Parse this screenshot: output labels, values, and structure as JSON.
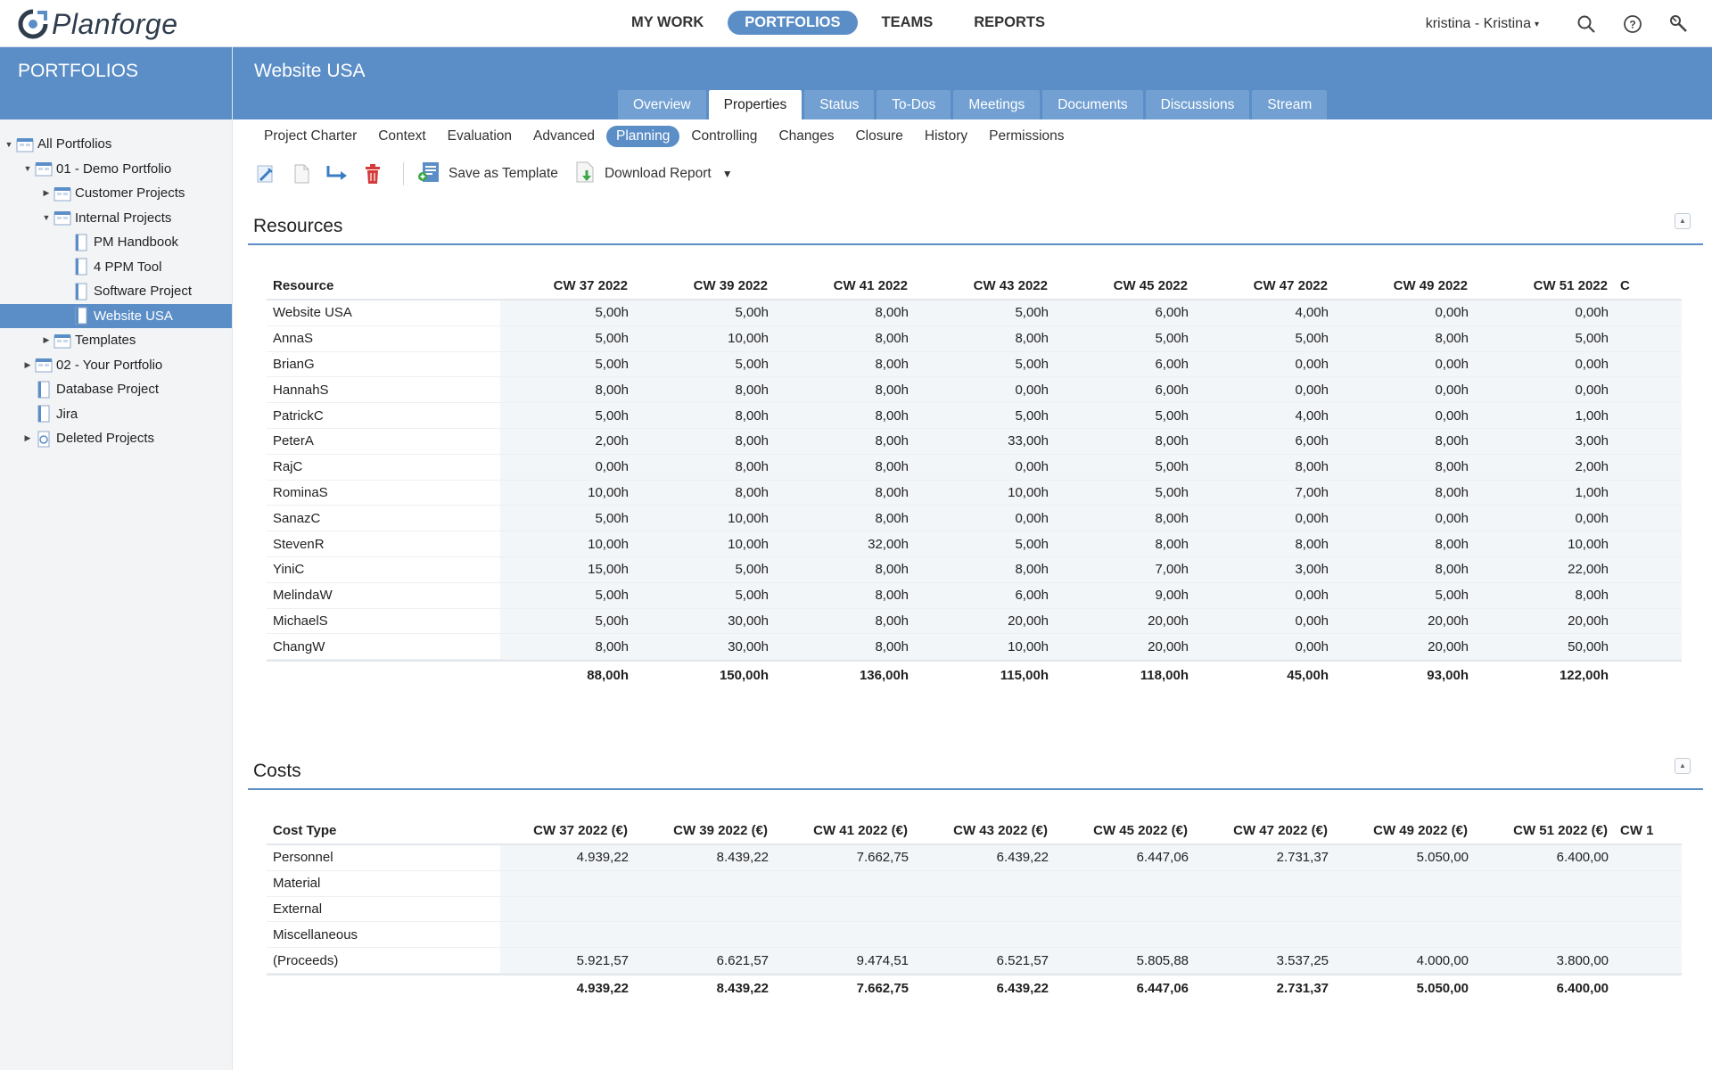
{
  "app": {
    "logo_text": "Planforge",
    "nav": [
      {
        "label": "MY WORK",
        "active": false
      },
      {
        "label": "PORTFOLIOS",
        "active": true
      },
      {
        "label": "TEAMS",
        "active": false
      },
      {
        "label": "REPORTS",
        "active": false
      }
    ],
    "user": "kristina - Kristina",
    "icons": [
      "search-icon",
      "help-icon",
      "tools-icon"
    ]
  },
  "sidebar": {
    "title": "PORTFOLIOS",
    "tree": [
      {
        "label": "All Portfolios",
        "level": 0,
        "twisty": "open",
        "icon": "portfolio-icon"
      },
      {
        "label": "01 - Demo Portfolio",
        "level": 1,
        "twisty": "open",
        "icon": "portfolio-icon"
      },
      {
        "label": "Customer Projects",
        "level": 2,
        "twisty": "closed",
        "icon": "portfolio-icon"
      },
      {
        "label": "Internal Projects",
        "level": 2,
        "twisty": "open",
        "icon": "portfolio-icon"
      },
      {
        "label": "PM Handbook",
        "level": 3,
        "twisty": "none",
        "icon": "project-icon"
      },
      {
        "label": "4 PPM Tool",
        "level": 3,
        "twisty": "none",
        "icon": "project-icon"
      },
      {
        "label": "Software Project",
        "level": 3,
        "twisty": "none",
        "icon": "project-icon"
      },
      {
        "label": "Website USA",
        "level": 3,
        "twisty": "none",
        "icon": "project-icon",
        "selected": true
      },
      {
        "label": "Templates",
        "level": 2,
        "twisty": "closed",
        "icon": "portfolio-icon"
      },
      {
        "label": "02 - Your Portfolio",
        "level": 1,
        "twisty": "closed",
        "icon": "portfolio-icon"
      },
      {
        "label": "Database Project",
        "level": 1,
        "twisty": "none",
        "icon": "project-icon"
      },
      {
        "label": "Jira",
        "level": 1,
        "twisty": "none",
        "icon": "project-icon"
      },
      {
        "label": "Deleted Projects",
        "level": 1,
        "twisty": "closed",
        "icon": "trash-folder-icon"
      }
    ]
  },
  "project": {
    "title": "Website USA",
    "tabs": [
      {
        "label": "Overview",
        "active": false
      },
      {
        "label": "Properties",
        "active": true
      },
      {
        "label": "Status",
        "active": false
      },
      {
        "label": "To-Dos",
        "active": false
      },
      {
        "label": "Meetings",
        "active": false
      },
      {
        "label": "Documents",
        "active": false
      },
      {
        "label": "Discussions",
        "active": false
      },
      {
        "label": "Stream",
        "active": false
      }
    ],
    "subtabs": [
      {
        "label": "Project Charter",
        "active": false
      },
      {
        "label": "Context",
        "active": false
      },
      {
        "label": "Evaluation",
        "active": false
      },
      {
        "label": "Advanced",
        "active": false
      },
      {
        "label": "Planning",
        "active": true
      },
      {
        "label": "Controlling",
        "active": false
      },
      {
        "label": "Changes",
        "active": false
      },
      {
        "label": "Closure",
        "active": false
      },
      {
        "label": "History",
        "active": false
      },
      {
        "label": "Permissions",
        "active": false
      }
    ]
  },
  "toolbar": {
    "save_template_label": "Save as Template",
    "download_report_label": "Download Report"
  },
  "resources": {
    "title": "Resources",
    "header_first": "Resource",
    "columns": [
      "CW 37 2022",
      "CW 39 2022",
      "CW 41 2022",
      "CW 43 2022",
      "CW 45 2022",
      "CW 47 2022",
      "CW 49 2022",
      "CW 51 2022",
      "C"
    ],
    "rows": [
      {
        "name": "Website USA",
        "values": [
          "5,00h",
          "5,00h",
          "8,00h",
          "5,00h",
          "6,00h",
          "4,00h",
          "0,00h",
          "0,00h"
        ]
      },
      {
        "name": "AnnaS",
        "values": [
          "5,00h",
          "10,00h",
          "8,00h",
          "8,00h",
          "5,00h",
          "5,00h",
          "8,00h",
          "5,00h"
        ]
      },
      {
        "name": "BrianG",
        "values": [
          "5,00h",
          "5,00h",
          "8,00h",
          "5,00h",
          "6,00h",
          "0,00h",
          "0,00h",
          "0,00h"
        ]
      },
      {
        "name": "HannahS",
        "values": [
          "8,00h",
          "8,00h",
          "8,00h",
          "0,00h",
          "6,00h",
          "0,00h",
          "0,00h",
          "0,00h"
        ]
      },
      {
        "name": "PatrickC",
        "values": [
          "5,00h",
          "8,00h",
          "8,00h",
          "5,00h",
          "5,00h",
          "4,00h",
          "0,00h",
          "1,00h"
        ]
      },
      {
        "name": "PeterA",
        "values": [
          "2,00h",
          "8,00h",
          "8,00h",
          "33,00h",
          "8,00h",
          "6,00h",
          "8,00h",
          "3,00h"
        ]
      },
      {
        "name": "RajC",
        "values": [
          "0,00h",
          "8,00h",
          "8,00h",
          "0,00h",
          "5,00h",
          "8,00h",
          "8,00h",
          "2,00h"
        ]
      },
      {
        "name": "RominaS",
        "values": [
          "10,00h",
          "8,00h",
          "8,00h",
          "10,00h",
          "5,00h",
          "7,00h",
          "8,00h",
          "1,00h"
        ]
      },
      {
        "name": "SanazC",
        "values": [
          "5,00h",
          "10,00h",
          "8,00h",
          "0,00h",
          "8,00h",
          "0,00h",
          "0,00h",
          "0,00h"
        ]
      },
      {
        "name": "StevenR",
        "values": [
          "10,00h",
          "10,00h",
          "32,00h",
          "5,00h",
          "8,00h",
          "8,00h",
          "8,00h",
          "10,00h"
        ]
      },
      {
        "name": "YiniC",
        "values": [
          "15,00h",
          "5,00h",
          "8,00h",
          "8,00h",
          "7,00h",
          "3,00h",
          "8,00h",
          "22,00h"
        ]
      },
      {
        "name": "MelindaW",
        "values": [
          "5,00h",
          "5,00h",
          "8,00h",
          "6,00h",
          "9,00h",
          "0,00h",
          "5,00h",
          "8,00h"
        ]
      },
      {
        "name": "MichaelS",
        "values": [
          "5,00h",
          "30,00h",
          "8,00h",
          "20,00h",
          "20,00h",
          "0,00h",
          "20,00h",
          "20,00h"
        ]
      },
      {
        "name": "ChangW",
        "values": [
          "8,00h",
          "30,00h",
          "8,00h",
          "10,00h",
          "20,00h",
          "0,00h",
          "20,00h",
          "50,00h"
        ]
      }
    ],
    "totals": [
      "88,00h",
      "150,00h",
      "136,00h",
      "115,00h",
      "118,00h",
      "45,00h",
      "93,00h",
      "122,00h"
    ]
  },
  "costs": {
    "title": "Costs",
    "header_first": "Cost Type",
    "columns": [
      "CW 37 2022 (€)",
      "CW 39 2022 (€)",
      "CW 41 2022 (€)",
      "CW 43 2022 (€)",
      "CW 45 2022 (€)",
      "CW 47 2022 (€)",
      "CW 49 2022 (€)",
      "CW 51 2022 (€)",
      "CW 1"
    ],
    "rows": [
      {
        "name": "Personnel",
        "values": [
          "4.939,22",
          "8.439,22",
          "7.662,75",
          "6.439,22",
          "6.447,06",
          "2.731,37",
          "5.050,00",
          "6.400,00"
        ]
      },
      {
        "name": "Material",
        "values": [
          "",
          "",
          "",
          "",
          "",
          "",
          "",
          ""
        ]
      },
      {
        "name": "External",
        "values": [
          "",
          "",
          "",
          "",
          "",
          "",
          "",
          ""
        ]
      },
      {
        "name": "Miscellaneous",
        "values": [
          "",
          "",
          "",
          "",
          "",
          "",
          "",
          ""
        ]
      },
      {
        "name": "(Proceeds)",
        "values": [
          "5.921,57",
          "6.621,57",
          "9.474,51",
          "6.521,57",
          "5.805,88",
          "3.537,25",
          "4.000,00",
          "3.800,00"
        ]
      }
    ],
    "totals": [
      "4.939,22",
      "8.439,22",
      "7.662,75",
      "6.439,22",
      "6.447,06",
      "2.731,37",
      "5.050,00",
      "6.400,00"
    ]
  },
  "colors": {
    "accent": "#5b8ec7",
    "tab_inactive": "#72a0d2",
    "delete_red": "#d43a3a",
    "download_green": "#3aa845"
  }
}
